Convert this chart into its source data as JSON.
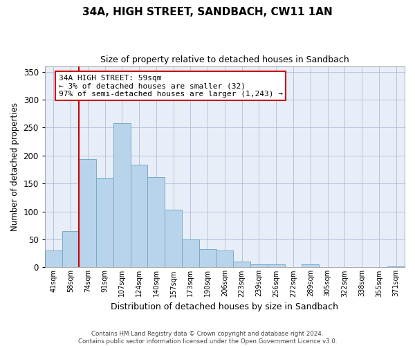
{
  "title": "34A, HIGH STREET, SANDBACH, CW11 1AN",
  "subtitle": "Size of property relative to detached houses in Sandbach",
  "xlabel": "Distribution of detached houses by size in Sandbach",
  "ylabel": "Number of detached properties",
  "bar_labels": [
    "41sqm",
    "58sqm",
    "74sqm",
    "91sqm",
    "107sqm",
    "124sqm",
    "140sqm",
    "157sqm",
    "173sqm",
    "190sqm",
    "206sqm",
    "223sqm",
    "239sqm",
    "256sqm",
    "272sqm",
    "289sqm",
    "305sqm",
    "322sqm",
    "338sqm",
    "355sqm",
    "371sqm"
  ],
  "bar_values": [
    30,
    65,
    193,
    160,
    258,
    184,
    162,
    103,
    50,
    33,
    30,
    11,
    5,
    5,
    0,
    5,
    0,
    0,
    0,
    0,
    2
  ],
  "bar_color": "#b8d4ea",
  "bar_edge_color": "#7aaac8",
  "vline_color": "#cc0000",
  "annotation_text": "34A HIGH STREET: 59sqm\n← 3% of detached houses are smaller (32)\n97% of semi-detached houses are larger (1,243) →",
  "annotation_box_color": "#ffffff",
  "annotation_box_edge": "#cc0000",
  "ylim": [
    0,
    360
  ],
  "yticks": [
    0,
    50,
    100,
    150,
    200,
    250,
    300,
    350
  ],
  "footer": "Contains HM Land Registry data © Crown copyright and database right 2024.\nContains public sector information licensed under the Open Government Licence v3.0.",
  "background_color": "#e8eef8"
}
